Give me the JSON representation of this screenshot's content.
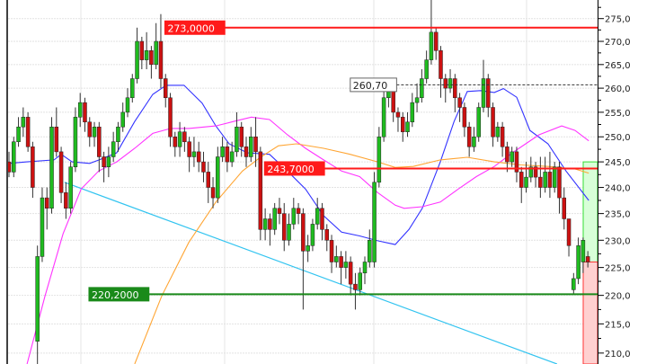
{
  "chart_data": {
    "type": "candlestick",
    "title": "",
    "xlabel": "",
    "ylabel": "",
    "y_scale": "log",
    "ylim": [
      208,
      276
    ],
    "y_ticks": [
      "210,0",
      "215,0",
      "220,0",
      "225,0",
      "230,0",
      "235,0",
      "240,0",
      "245,0",
      "250,0",
      "255,0",
      "260,0",
      "265,0",
      "270,0",
      "275,0"
    ],
    "grid": true,
    "colors": {
      "up": "#1fbb1f",
      "down": "#cc1111",
      "wick": "#333333",
      "ma_fast": "#3333ff",
      "ma_mid": "#ff33ff",
      "ma_slow": "#ffa533",
      "trendline": "#33c4f0"
    },
    "open": [
      245,
      243,
      249,
      252,
      254,
      248,
      212,
      227,
      238,
      236,
      252,
      247,
      239,
      236,
      244,
      254,
      257,
      253,
      250,
      252,
      246,
      244,
      246,
      249,
      252,
      255,
      258,
      262,
      270,
      266,
      268,
      265,
      270,
      262,
      258,
      250,
      248,
      251,
      249,
      246,
      247,
      245,
      243,
      240,
      238,
      246,
      248,
      245,
      247,
      252,
      248,
      246,
      250,
      247,
      232,
      234,
      232,
      236,
      235,
      230,
      233,
      236,
      235,
      228,
      229,
      233,
      236,
      232,
      230,
      226,
      227,
      225,
      226,
      222,
      221,
      224,
      226,
      226,
      241,
      250,
      258,
      260,
      255,
      254,
      251,
      253,
      257,
      258,
      262,
      266,
      272,
      268,
      262,
      260,
      262,
      258,
      256,
      252,
      248,
      250,
      256,
      262,
      256,
      250,
      252,
      248,
      245,
      247,
      243,
      240,
      242,
      244,
      242,
      240,
      243,
      240,
      244,
      238,
      234,
      221,
      223,
      226,
      227
    ],
    "high": [
      247,
      250,
      254,
      256,
      255,
      249,
      229,
      240,
      240,
      254,
      256,
      248,
      241,
      245,
      256,
      259,
      258,
      254,
      253,
      253,
      247,
      248,
      251,
      253,
      257,
      260,
      263,
      273,
      271,
      272,
      269,
      274,
      276,
      263,
      259,
      251,
      253,
      252,
      250,
      250,
      249,
      247,
      245,
      242,
      248,
      250,
      249,
      249,
      255,
      253,
      250,
      252,
      254,
      248,
      236,
      235,
      237,
      238,
      237,
      235,
      238,
      237,
      236,
      231,
      234,
      238,
      237,
      233,
      231,
      229,
      228,
      228,
      227,
      224,
      225,
      227,
      232,
      243,
      252,
      261,
      262,
      261,
      256,
      255,
      255,
      259,
      261,
      264,
      268,
      280,
      273,
      269,
      263,
      264,
      263,
      259,
      257,
      253,
      252,
      257,
      266,
      263,
      257,
      253,
      253,
      249,
      248,
      248,
      244,
      245,
      246,
      245,
      246,
      246,
      247,
      245,
      245,
      240,
      234,
      224,
      230.5,
      230.5,
      228
    ],
    "low": [
      242,
      242,
      248,
      250,
      247,
      238,
      208,
      226,
      232,
      235,
      246,
      237,
      234,
      235,
      243,
      252,
      251,
      248,
      248,
      243,
      241,
      242,
      245,
      247,
      251,
      254,
      257,
      261,
      264,
      264,
      262,
      264,
      260,
      256,
      248,
      246,
      246,
      247,
      243,
      244,
      243,
      241,
      237,
      236,
      237,
      245,
      243,
      244,
      246,
      246,
      244,
      245,
      244,
      230,
      230,
      229,
      231,
      233,
      228,
      229,
      232,
      233,
      217.5,
      226,
      228,
      232,
      230,
      228,
      224,
      225,
      222,
      223,
      220,
      217.5,
      220,
      222,
      225,
      225,
      240,
      249,
      256,
      253,
      251,
      249,
      250,
      252,
      255,
      257,
      261,
      265,
      266,
      258,
      257,
      259,
      255,
      253,
      250,
      246,
      247,
      249,
      255,
      254,
      248,
      249,
      246,
      243,
      244,
      241,
      237,
      239,
      241,
      240,
      238,
      239,
      238,
      239,
      235,
      232,
      227,
      220.2,
      222,
      224,
      225
    ],
    "close": [
      243,
      249,
      252,
      254,
      248,
      240,
      227,
      238,
      236,
      252,
      247,
      239,
      236,
      244,
      254,
      257,
      253,
      250,
      252,
      246,
      244,
      246,
      249,
      252,
      255,
      258,
      262,
      270,
      266,
      268,
      265,
      270,
      262,
      258,
      250,
      248,
      251,
      249,
      246,
      247,
      245,
      243,
      240,
      238,
      246,
      248,
      245,
      247,
      252,
      248,
      246,
      250,
      247,
      232,
      234,
      232,
      236,
      235,
      230,
      233,
      236,
      235,
      228,
      229,
      233,
      236,
      232,
      230,
      226,
      227,
      225,
      226,
      222,
      221,
      224,
      226,
      230,
      241,
      250,
      258,
      260,
      255,
      254,
      251,
      253,
      257,
      258,
      262,
      266,
      272,
      268,
      262,
      260,
      262,
      258,
      256,
      252,
      248,
      250,
      256,
      262,
      256,
      250,
      252,
      248,
      245,
      247,
      243,
      240,
      242,
      244,
      242,
      240,
      243,
      240,
      244,
      238,
      234,
      229,
      223,
      229,
      230,
      226
    ],
    "moving_averages": [
      {
        "color_key": "ma_fast",
        "points": [
          [
            0,
            244.7
          ],
          [
            3.8,
            245.0
          ],
          [
            9.5,
            245.4
          ],
          [
            11,
            246.5
          ],
          [
            13.3,
            245.0
          ],
          [
            17,
            244.7
          ],
          [
            19,
            245.4
          ],
          [
            22.7,
            246.8
          ],
          [
            26.5,
            253.1
          ],
          [
            30.3,
            258.7
          ],
          [
            33.1,
            260.6
          ],
          [
            36.9,
            260.6
          ],
          [
            40.7,
            256.9
          ],
          [
            43.6,
            252.2
          ],
          [
            46.4,
            248.6
          ],
          [
            50.2,
            246.8
          ],
          [
            54.9,
            246.5
          ],
          [
            58.7,
            243.2
          ],
          [
            62.5,
            239.7
          ],
          [
            66.3,
            234.6
          ],
          [
            70.1,
            231.5
          ],
          [
            73.9,
            230.8
          ],
          [
            77.7,
            229.9
          ],
          [
            81.4,
            229.2
          ],
          [
            84.3,
            232.0
          ],
          [
            87.1,
            236.0
          ],
          [
            90.9,
            245.0
          ],
          [
            93.8,
            253.1
          ],
          [
            96.6,
            259.3
          ],
          [
            99.4,
            259.5
          ],
          [
            102.3,
            259.1
          ],
          [
            104.2,
            259.9
          ],
          [
            107,
            258.1
          ],
          [
            109.8,
            251.3
          ],
          [
            113.6,
            248.6
          ],
          [
            117.4,
            243.2
          ],
          [
            122.2,
            237.5
          ]
        ]
      },
      {
        "color_key": "ma_mid",
        "points": [
          [
            3.8,
            208.1
          ],
          [
            7.6,
            219.9
          ],
          [
            11.4,
            231.2
          ],
          [
            15.2,
            239.7
          ],
          [
            18.9,
            243.2
          ],
          [
            22.7,
            245.0
          ],
          [
            26.5,
            247.7
          ],
          [
            30.3,
            250.7
          ],
          [
            34.1,
            251.7
          ],
          [
            37.9,
            251.7
          ],
          [
            43.6,
            252.2
          ],
          [
            47.3,
            253.1
          ],
          [
            51.1,
            254.0
          ],
          [
            54.9,
            253.5
          ],
          [
            58.7,
            250.4
          ],
          [
            62.5,
            247.7
          ],
          [
            66.3,
            245.4
          ],
          [
            70.1,
            243.2
          ],
          [
            73.9,
            242.1
          ],
          [
            77.7,
            239.0
          ],
          [
            81.4,
            236.6
          ],
          [
            83.3,
            236.0
          ],
          [
            87.1,
            236.3
          ],
          [
            90.9,
            237.2
          ],
          [
            94.7,
            239.7
          ],
          [
            98.5,
            242.1
          ],
          [
            102.3,
            244.1
          ],
          [
            106.1,
            246.8
          ],
          [
            111.7,
            250.4
          ],
          [
            116.5,
            252.2
          ],
          [
            119.3,
            251.3
          ],
          [
            122.2,
            249.2
          ]
        ]
      },
      {
        "color_key": "ma_slow",
        "points": [
          [
            26.5,
            208.1
          ],
          [
            32.2,
            219.9
          ],
          [
            37.9,
            229.6
          ],
          [
            43.6,
            237.2
          ],
          [
            49.2,
            243.2
          ],
          [
            53,
            245.9
          ],
          [
            56.8,
            248.2
          ],
          [
            60.6,
            248.6
          ],
          [
            66.3,
            247.7
          ],
          [
            71.9,
            246.5
          ],
          [
            77.7,
            245.0
          ],
          [
            81.4,
            243.9
          ],
          [
            85.2,
            244.1
          ],
          [
            90.9,
            245.4
          ],
          [
            96.6,
            245.9
          ],
          [
            102.3,
            245.0
          ],
          [
            107.9,
            244.4
          ],
          [
            113.6,
            244.1
          ],
          [
            119.3,
            243.6
          ],
          [
            122.2,
            242.8
          ]
        ]
      }
    ],
    "trendline": {
      "from": [
        11.7,
        241.0
      ],
      "to": [
        115.5,
        208.1
      ]
    },
    "levels": [
      {
        "label": "273,0000",
        "value": 273.0,
        "style": "solid",
        "color": "#ff1a1a",
        "label_bg": "#ff1a1a",
        "label_fg": "#ffffff",
        "from_index": 45.5
      },
      {
        "label": "260,70",
        "value": 260.7,
        "style": "dashed",
        "color": "#333333",
        "label_bg": "#ffffff",
        "label_fg": "#222222",
        "from_index": 81.7
      },
      {
        "label": "243,7000",
        "value": 243.7,
        "style": "solid",
        "color": "#ff1a1a",
        "label_bg": "#ff1a1a",
        "label_fg": "#ffffff",
        "from_index": 66.5
      },
      {
        "label": "220,2000",
        "value": 220.2,
        "style": "solid",
        "color": "#1a8a1a",
        "label_bg": "#1a8a1a",
        "label_fg": "#ffffff",
        "from_index": 29.5
      }
    ],
    "zones": [
      {
        "kind": "target",
        "from": 226.0,
        "to": 245.0,
        "fill": "#d8ffd8",
        "stroke": "#33dd33"
      },
      {
        "kind": "stop",
        "from": 205.0,
        "to": 226.0,
        "fill": "#ffd0d0",
        "stroke": "#ff3333"
      }
    ]
  }
}
